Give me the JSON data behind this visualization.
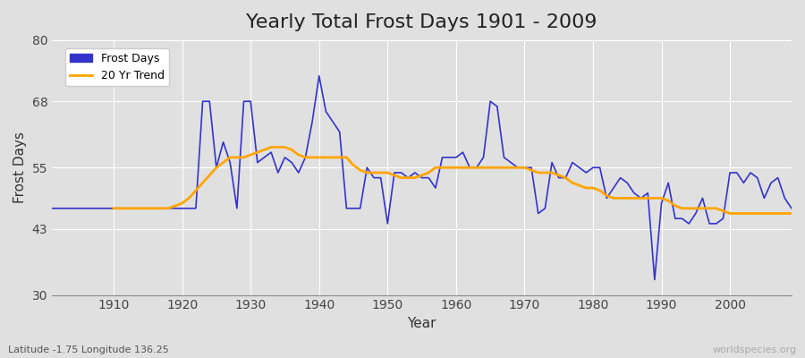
{
  "title": "Yearly Total Frost Days 1901 - 2009",
  "xlabel": "Year",
  "ylabel": "Frost Days",
  "subtitle": "Latitude -1.75 Longitude 136.25",
  "watermark": "worldspecies.org",
  "ylim": [
    30,
    80
  ],
  "xlim": [
    1901,
    2009
  ],
  "yticks": [
    30,
    43,
    55,
    68,
    80
  ],
  "xticks": [
    1910,
    1920,
    1930,
    1940,
    1950,
    1960,
    1970,
    1980,
    1990,
    2000
  ],
  "background_color": "#e0e0e0",
  "grid_color": "#ffffff",
  "frost_color": "#3333cc",
  "trend_color": "#ffa500",
  "years": [
    1901,
    1902,
    1903,
    1904,
    1905,
    1906,
    1907,
    1908,
    1909,
    1910,
    1911,
    1912,
    1913,
    1914,
    1915,
    1916,
    1917,
    1918,
    1919,
    1920,
    1921,
    1922,
    1923,
    1924,
    1925,
    1926,
    1927,
    1928,
    1929,
    1930,
    1931,
    1932,
    1933,
    1934,
    1935,
    1936,
    1937,
    1938,
    1939,
    1940,
    1941,
    1942,
    1943,
    1944,
    1945,
    1946,
    1947,
    1948,
    1949,
    1950,
    1951,
    1952,
    1953,
    1954,
    1955,
    1956,
    1957,
    1958,
    1959,
    1960,
    1961,
    1962,
    1963,
    1964,
    1965,
    1966,
    1967,
    1968,
    1969,
    1970,
    1971,
    1972,
    1973,
    1974,
    1975,
    1976,
    1977,
    1978,
    1979,
    1980,
    1981,
    1982,
    1983,
    1984,
    1985,
    1986,
    1987,
    1988,
    1989,
    1990,
    1991,
    1992,
    1993,
    1994,
    1995,
    1996,
    1997,
    1998,
    1999,
    2000,
    2001,
    2002,
    2003,
    2004,
    2005,
    2006,
    2007,
    2008,
    2009
  ],
  "frost_days": [
    47,
    47,
    47,
    47,
    47,
    47,
    47,
    47,
    47,
    47,
    47,
    47,
    47,
    47,
    47,
    47,
    47,
    47,
    47,
    47,
    47,
    47,
    68,
    68,
    55,
    60,
    56,
    47,
    68,
    68,
    56,
    57,
    58,
    54,
    57,
    56,
    54,
    57,
    64,
    73,
    66,
    64,
    62,
    47,
    47,
    47,
    55,
    53,
    53,
    44,
    54,
    54,
    53,
    54,
    53,
    53,
    51,
    57,
    57,
    57,
    58,
    55,
    55,
    57,
    68,
    67,
    57,
    56,
    55,
    55,
    55,
    46,
    47,
    56,
    53,
    53,
    56,
    55,
    54,
    55,
    55,
    49,
    51,
    53,
    52,
    50,
    49,
    50,
    33,
    48,
    52,
    45,
    45,
    44,
    46,
    49,
    44,
    44,
    45,
    54,
    54,
    52,
    54,
    53,
    49,
    52,
    53,
    49,
    47
  ],
  "trend_years": [
    1910,
    1911,
    1912,
    1913,
    1914,
    1915,
    1916,
    1917,
    1918,
    1919,
    1920,
    1921,
    1922,
    1923,
    1924,
    1925,
    1926,
    1927,
    1928,
    1929,
    1930,
    1931,
    1932,
    1933,
    1934,
    1935,
    1936,
    1937,
    1938,
    1939,
    1940,
    1941,
    1942,
    1943,
    1944,
    1945,
    1946,
    1947,
    1948,
    1949,
    1950,
    1951,
    1952,
    1953,
    1954,
    1955,
    1956,
    1957,
    1958,
    1959,
    1960,
    1961,
    1962,
    1963,
    1964,
    1965,
    1966,
    1967,
    1968,
    1969,
    1970,
    1971,
    1972,
    1973,
    1974,
    1975,
    1976,
    1977,
    1978,
    1979,
    1980,
    1981,
    1982,
    1983,
    1984,
    1985,
    1986,
    1987,
    1988,
    1989,
    1990,
    1991,
    1992,
    1993,
    1994,
    1995,
    1996,
    1997,
    1998,
    1999,
    2000,
    2001,
    2002,
    2003,
    2004,
    2005,
    2006,
    2007,
    2008,
    2009
  ],
  "trend_values": [
    47.0,
    47.0,
    47.0,
    47.0,
    47.0,
    47.0,
    47.0,
    47.0,
    47.0,
    47.5,
    48.0,
    49.0,
    50.5,
    52.0,
    53.5,
    55.0,
    56.0,
    57.0,
    57.0,
    57.0,
    57.5,
    58.0,
    58.5,
    59.0,
    59.0,
    59.0,
    58.5,
    57.5,
    57.0,
    57.0,
    57.0,
    57.0,
    57.0,
    57.0,
    57.0,
    55.5,
    54.5,
    54.0,
    54.0,
    54.0,
    54.0,
    53.5,
    53.0,
    53.0,
    53.0,
    53.5,
    54.0,
    55.0,
    55.0,
    55.0,
    55.0,
    55.0,
    55.0,
    55.0,
    55.0,
    55.0,
    55.0,
    55.0,
    55.0,
    55.0,
    55.0,
    54.5,
    54.0,
    54.0,
    54.0,
    53.5,
    53.0,
    52.0,
    51.5,
    51.0,
    51.0,
    50.5,
    49.5,
    49.0,
    49.0,
    49.0,
    49.0,
    49.0,
    49.0,
    49.0,
    49.0,
    48.5,
    47.5,
    47.0,
    47.0,
    47.0,
    47.0,
    47.0,
    47.0,
    46.5,
    46.0,
    46.0,
    46.0,
    46.0,
    46.0,
    46.0,
    46.0,
    46.0,
    46.0,
    46.0
  ]
}
